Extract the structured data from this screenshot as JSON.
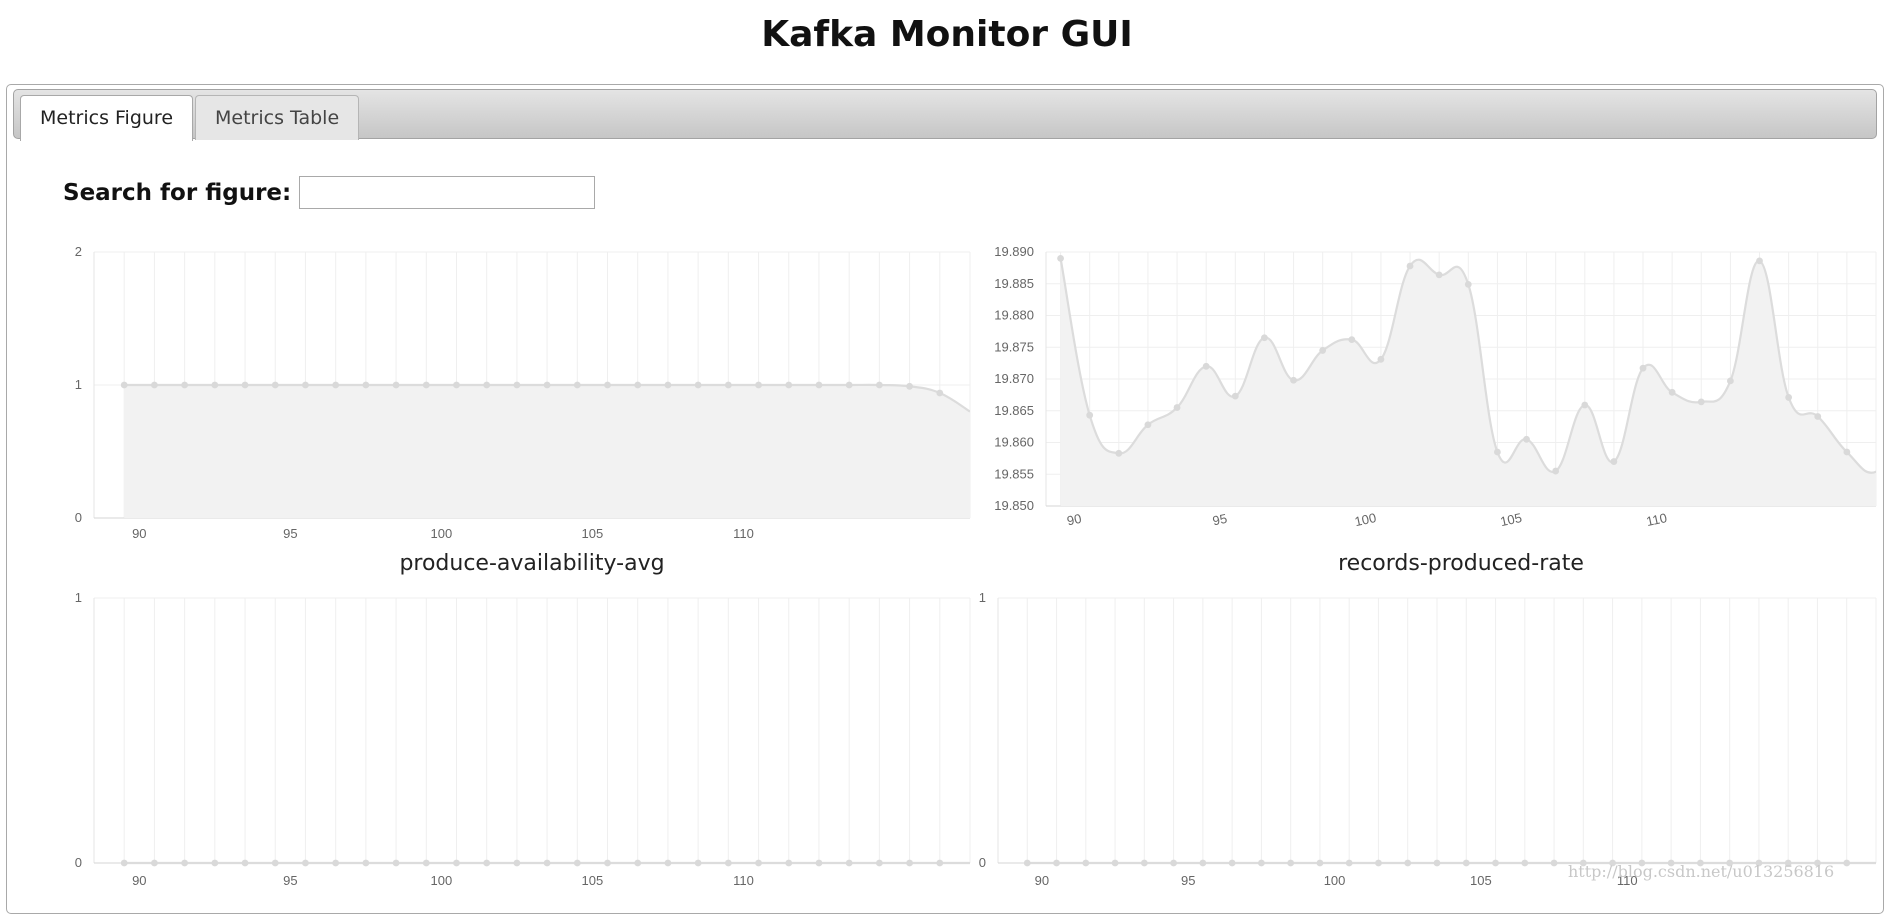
{
  "header": {
    "title": "Kafka Monitor GUI"
  },
  "tabs": [
    {
      "label": "Metrics Figure",
      "active": true
    },
    {
      "label": "Metrics Table",
      "active": false
    }
  ],
  "search": {
    "label": "Search for figure:",
    "value": "",
    "placeholder": ""
  },
  "watermark": "http://blog.csdn.net/u013256816",
  "colors": {
    "line": "#dcdcdc",
    "fill": "#f2f2f2",
    "grid": "#efefef",
    "point": "#d9d9d9"
  },
  "chart_data": [
    {
      "type": "line",
      "title": "produce-availability-avg",
      "x_ticks": [
        90,
        95,
        100,
        105,
        110
      ],
      "y_ticks": [
        "0",
        "1",
        "2"
      ],
      "ylim": [
        0,
        2
      ],
      "x": [
        89.5,
        90.5,
        91.5,
        92.5,
        93.5,
        94.5,
        95.5,
        96.5,
        97.5,
        98.5,
        99.5,
        100.5,
        101.5,
        102.5,
        103.5,
        104.5,
        105.5,
        106.5,
        107.5,
        108.5,
        109.5,
        110.5,
        111.5,
        112.5,
        113.5,
        114.5,
        115.5,
        116.5,
        117.5
      ],
      "values": [
        1,
        1,
        1,
        1,
        1,
        1,
        1,
        1,
        1,
        1,
        1,
        1,
        1,
        1,
        1,
        1,
        1,
        1,
        1,
        1,
        1,
        1,
        1,
        1,
        1,
        1,
        0.99,
        0.94,
        0.8
      ],
      "xlim": [
        88.5,
        117.5
      ],
      "grid": true,
      "filled": true
    },
    {
      "type": "line",
      "title": "records-produced-rate",
      "x_ticks": [
        90,
        95,
        100,
        105,
        110
      ],
      "y_ticks": [
        "19.850",
        "19.855",
        "19.860",
        "19.865",
        "19.870",
        "19.875",
        "19.880",
        "19.885",
        "19.890"
      ],
      "ylim": [
        19.85,
        19.89
      ],
      "x": [
        89.5,
        90.5,
        91.5,
        92.5,
        93.5,
        94.5,
        95.5,
        96.5,
        97.5,
        98.5,
        99.5,
        100.5,
        101.5,
        102.5,
        103.5,
        104.5,
        105.5,
        106.5,
        107.5,
        108.5,
        109.5,
        110.5,
        111.5,
        112.5,
        113.5,
        114.5,
        115.5,
        116.5,
        117.5,
        118.5
      ],
      "values": [
        19.889,
        19.8643,
        19.8583,
        19.8628,
        19.8655,
        19.872,
        19.8673,
        19.8765,
        19.8698,
        19.8745,
        19.8762,
        19.8731,
        19.8878,
        19.8864,
        19.8849,
        19.8585,
        19.8605,
        19.8555,
        19.8659,
        19.857,
        19.8717,
        19.8679,
        19.8664,
        19.8697,
        19.8886,
        19.8671,
        19.8641,
        19.8585,
        19.8554,
        19.8625
      ],
      "xlim": [
        89.0,
        117.5
      ],
      "grid": true,
      "filled": true
    },
    {
      "type": "line",
      "title": "",
      "x_ticks": [
        90,
        95,
        100,
        105,
        110
      ],
      "y_ticks": [
        "0",
        "1"
      ],
      "ylim": [
        0,
        1
      ],
      "x": [
        89.5,
        90.5,
        91.5,
        92.5,
        93.5,
        94.5,
        95.5,
        96.5,
        97.5,
        98.5,
        99.5,
        100.5,
        101.5,
        102.5,
        103.5,
        104.5,
        105.5,
        106.5,
        107.5,
        108.5,
        109.5,
        110.5,
        111.5,
        112.5,
        113.5,
        114.5,
        115.5,
        116.5,
        117.5
      ],
      "values": [
        0,
        0,
        0,
        0,
        0,
        0,
        0,
        0,
        0,
        0,
        0,
        0,
        0,
        0,
        0,
        0,
        0,
        0,
        0,
        0,
        0,
        0,
        0,
        0,
        0,
        0,
        0,
        0,
        0
      ],
      "xlim": [
        88.5,
        117.5
      ],
      "grid": true,
      "filled": false
    },
    {
      "type": "line",
      "title": "",
      "x_ticks": [
        90,
        95,
        100,
        105,
        110
      ],
      "y_ticks": [
        "0",
        "1"
      ],
      "ylim": [
        0,
        1
      ],
      "x": [
        89.5,
        90.5,
        91.5,
        92.5,
        93.5,
        94.5,
        95.5,
        96.5,
        97.5,
        98.5,
        99.5,
        100.5,
        101.5,
        102.5,
        103.5,
        104.5,
        105.5,
        106.5,
        107.5,
        108.5,
        109.5,
        110.5,
        111.5,
        112.5,
        113.5,
        114.5,
        115.5,
        116.5,
        117.5,
        118.5
      ],
      "values": [
        0,
        0,
        0,
        0,
        0,
        0,
        0,
        0,
        0,
        0,
        0,
        0,
        0,
        0,
        0,
        0,
        0,
        0,
        0,
        0,
        0,
        0,
        0,
        0,
        0,
        0,
        0,
        0,
        0,
        0
      ],
      "xlim": [
        88.5,
        118.5
      ],
      "grid": true,
      "filled": false
    }
  ]
}
